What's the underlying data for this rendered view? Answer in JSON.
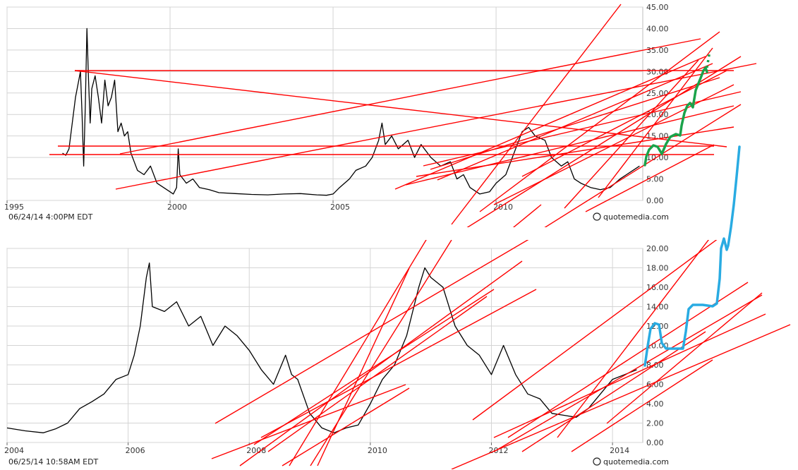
{
  "charts": [
    {
      "timestamp": "06/24/14 4:00PM EDT",
      "brand": "quotemedia.com",
      "chart_data": {
        "type": "line",
        "title": "",
        "xlabel": "",
        "ylabel": "",
        "xlim": [
          1995,
          2014.5
        ],
        "ylim": [
          0,
          45
        ],
        "x_ticks": [
          "1995",
          "2000",
          "2005",
          "2010"
        ],
        "x_tick_values": [
          1995,
          2000,
          2005,
          2010
        ],
        "y_ticks": [
          "0.00",
          "5.00",
          "10.00",
          "15.00",
          "20.00",
          "25.00",
          "30.00",
          "35.00",
          "40.00",
          "45.00"
        ],
        "y_tick_values": [
          0,
          5,
          10,
          15,
          20,
          25,
          30,
          35,
          40,
          45
        ],
        "grid": true,
        "series": [
          {
            "values": [
              [
                1996.7,
                11
              ],
              [
                1996.8,
                10.5
              ],
              [
                1996.9,
                12
              ],
              [
                1997.0,
                18
              ],
              [
                1997.1,
                24
              ],
              [
                1997.2,
                28
              ],
              [
                1997.25,
                30
              ],
              [
                1997.3,
                20
              ],
              [
                1997.35,
                8
              ],
              [
                1997.4,
                22
              ],
              [
                1997.45,
                40
              ],
              [
                1997.5,
                28
              ],
              [
                1997.55,
                18
              ],
              [
                1997.6,
                26
              ],
              [
                1997.7,
                29
              ],
              [
                1997.8,
                24
              ],
              [
                1997.9,
                18
              ],
              [
                1998.0,
                28
              ],
              [
                1998.1,
                22
              ],
              [
                1998.2,
                24
              ],
              [
                1998.3,
                28
              ],
              [
                1998.4,
                16
              ],
              [
                1998.5,
                18
              ],
              [
                1998.6,
                15
              ],
              [
                1998.7,
                16
              ],
              [
                1998.8,
                11
              ],
              [
                1998.9,
                9
              ],
              [
                1999.0,
                7
              ],
              [
                1999.2,
                6
              ],
              [
                1999.4,
                8
              ],
              [
                1999.6,
                4
              ],
              [
                1999.8,
                3
              ],
              [
                2000.0,
                2
              ],
              [
                2000.1,
                1.5
              ],
              [
                2000.2,
                3
              ],
              [
                2000.25,
                12
              ],
              [
                2000.3,
                6
              ],
              [
                2000.5,
                4
              ],
              [
                2000.7,
                5
              ],
              [
                2000.9,
                3
              ],
              [
                2001.2,
                2.5
              ],
              [
                2001.5,
                1.8
              ],
              [
                2002.0,
                1.6
              ],
              [
                2002.5,
                1.4
              ],
              [
                2003.0,
                1.3
              ],
              [
                2003.5,
                1.5
              ],
              [
                2004.0,
                1.6
              ],
              [
                2004.5,
                1.3
              ],
              [
                2004.8,
                1.2
              ],
              [
                2005.0,
                1.5
              ],
              [
                2005.2,
                3
              ],
              [
                2005.5,
                5
              ],
              [
                2005.7,
                7
              ],
              [
                2006.0,
                8
              ],
              [
                2006.2,
                10
              ],
              [
                2006.4,
                14
              ],
              [
                2006.5,
                18
              ],
              [
                2006.6,
                13
              ],
              [
                2006.8,
                15
              ],
              [
                2007.0,
                12
              ],
              [
                2007.3,
                14
              ],
              [
                2007.5,
                10
              ],
              [
                2007.7,
                13
              ],
              [
                2008.0,
                10
              ],
              [
                2008.3,
                8
              ],
              [
                2008.6,
                9
              ],
              [
                2008.8,
                5
              ],
              [
                2009.0,
                6
              ],
              [
                2009.2,
                3
              ],
              [
                2009.5,
                1.5
              ],
              [
                2009.8,
                2
              ],
              [
                2010.0,
                4
              ],
              [
                2010.3,
                6
              ],
              [
                2010.6,
                12
              ],
              [
                2010.8,
                16
              ],
              [
                2011.0,
                17
              ],
              [
                2011.2,
                15
              ],
              [
                2011.5,
                14
              ],
              [
                2011.7,
                10
              ],
              [
                2012.0,
                8
              ],
              [
                2012.2,
                9
              ],
              [
                2012.4,
                5
              ],
              [
                2012.6,
                4
              ],
              [
                2012.9,
                3
              ],
              [
                2013.2,
                2.5
              ],
              [
                2013.5,
                3
              ],
              [
                2013.8,
                5
              ],
              [
                2014.0,
                6
              ],
              [
                2014.2,
                7
              ],
              [
                2014.4,
                8
              ]
            ]
          }
        ],
        "annotations": "hand-drawn red trend lines and a green projected path"
      }
    },
    {
      "timestamp": "06/25/14 10:58AM EDT",
      "brand": "quotemedia.com",
      "chart_data": {
        "type": "line",
        "title": "",
        "xlabel": "",
        "ylabel": "",
        "xlim": [
          2004,
          2014.5
        ],
        "ylim": [
          0,
          20
        ],
        "x_ticks": [
          "2004",
          "2006",
          "2008",
          "2010",
          "2012",
          "2014"
        ],
        "x_tick_values": [
          2004,
          2006,
          2008,
          2010,
          2012,
          2014
        ],
        "y_ticks": [
          "0.00",
          "2.00",
          "4.00",
          "6.00",
          "8.00",
          "10.00",
          "12.00",
          "14.00",
          "16.00",
          "18.00",
          "20.00"
        ],
        "y_tick_values": [
          0,
          2,
          4,
          6,
          8,
          10,
          12,
          14,
          16,
          18,
          20
        ],
        "grid": true,
        "series": [
          {
            "values": [
              [
                2004.0,
                1.5
              ],
              [
                2004.3,
                1.2
              ],
              [
                2004.6,
                1.0
              ],
              [
                2004.8,
                1.4
              ],
              [
                2005.0,
                2.0
              ],
              [
                2005.2,
                3.5
              ],
              [
                2005.4,
                4.2
              ],
              [
                2005.6,
                5.0
              ],
              [
                2005.8,
                6.5
              ],
              [
                2006.0,
                7.0
              ],
              [
                2006.1,
                9.0
              ],
              [
                2006.2,
                12.0
              ],
              [
                2006.3,
                17.0
              ],
              [
                2006.35,
                18.5
              ],
              [
                2006.4,
                14.0
              ],
              [
                2006.6,
                13.5
              ],
              [
                2006.8,
                14.5
              ],
              [
                2007.0,
                12.0
              ],
              [
                2007.2,
                13.0
              ],
              [
                2007.4,
                10.0
              ],
              [
                2007.6,
                12.0
              ],
              [
                2007.8,
                11.0
              ],
              [
                2008.0,
                9.5
              ],
              [
                2008.2,
                7.5
              ],
              [
                2008.4,
                6.0
              ],
              [
                2008.6,
                9.0
              ],
              [
                2008.7,
                7.0
              ],
              [
                2008.8,
                6.5
              ],
              [
                2009.0,
                3.0
              ],
              [
                2009.2,
                1.5
              ],
              [
                2009.4,
                1.0
              ],
              [
                2009.6,
                1.5
              ],
              [
                2009.8,
                1.8
              ],
              [
                2010.0,
                4.0
              ],
              [
                2010.2,
                6.5
              ],
              [
                2010.4,
                8.0
              ],
              [
                2010.6,
                11.0
              ],
              [
                2010.8,
                16.0
              ],
              [
                2010.9,
                18.0
              ],
              [
                2011.0,
                17.0
              ],
              [
                2011.2,
                16.0
              ],
              [
                2011.4,
                12.0
              ],
              [
                2011.6,
                10.0
              ],
              [
                2011.8,
                9.0
              ],
              [
                2012.0,
                7.0
              ],
              [
                2012.2,
                10.0
              ],
              [
                2012.4,
                7.0
              ],
              [
                2012.6,
                5.0
              ],
              [
                2012.8,
                4.5
              ],
              [
                2013.0,
                3.0
              ],
              [
                2013.2,
                2.8
              ],
              [
                2013.4,
                2.6
              ],
              [
                2013.6,
                3.5
              ],
              [
                2013.8,
                5.0
              ],
              [
                2014.0,
                6.5
              ],
              [
                2014.2,
                7.0
              ],
              [
                2014.4,
                7.5
              ]
            ]
          }
        ],
        "annotations": "hand-drawn red trend lines and a blue projected path"
      }
    }
  ],
  "colors": {
    "background": "#ffffff",
    "plot_bg": "#ffffff",
    "grid": "#d4d4d4",
    "frame": "#bdbdbd",
    "price": "#000000",
    "trend": "#ff0000",
    "projection_top": "#1aa34a",
    "projection_bottom": "#29abe2"
  }
}
